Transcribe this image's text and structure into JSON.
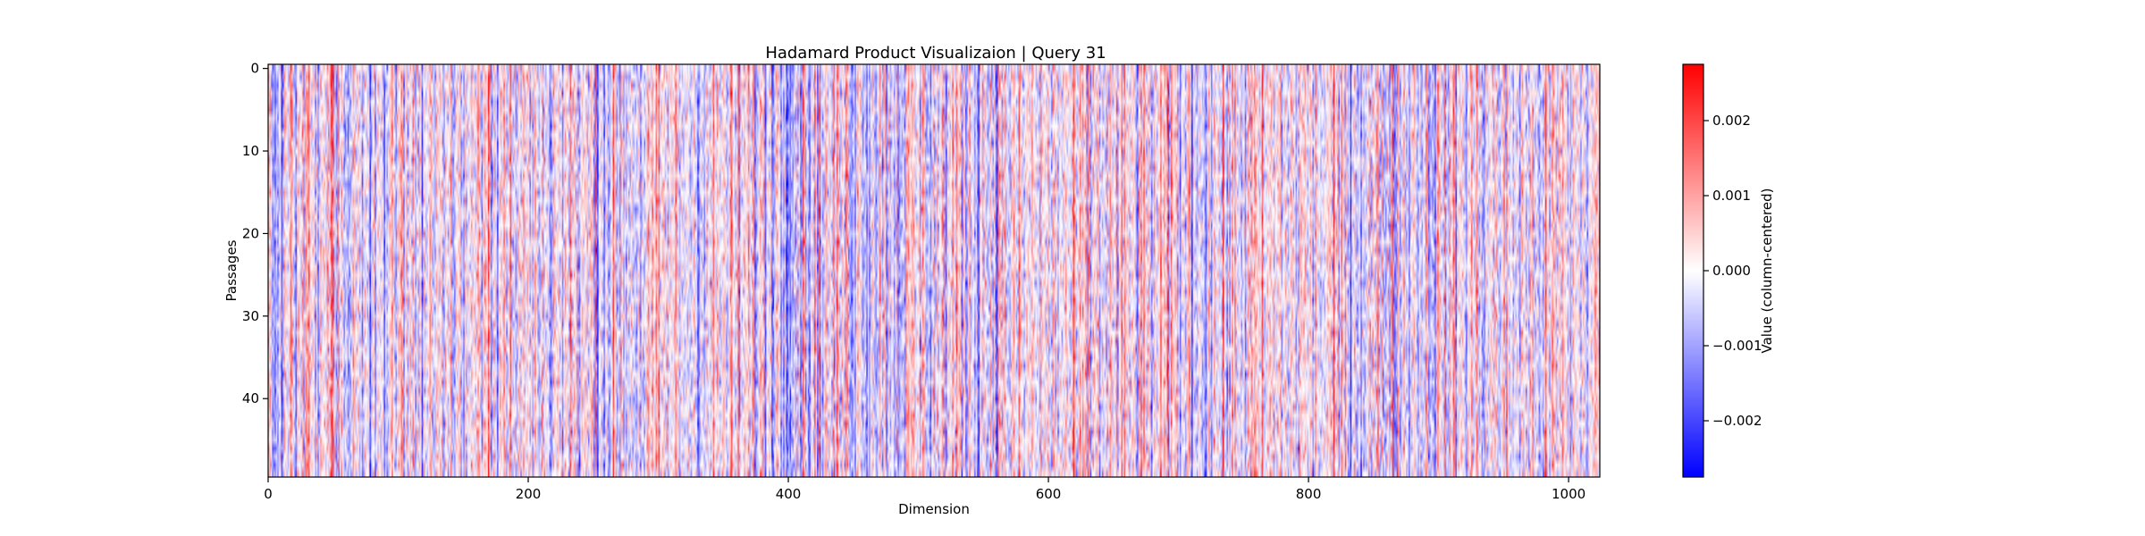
{
  "chart_data": {
    "type": "heatmap",
    "title": "Hadamard Product Visualizaion | Query 31",
    "xlabel": "Dimension",
    "ylabel": "Passages",
    "x_range": [
      0,
      1024
    ],
    "y_range": [
      0,
      50
    ],
    "rows": 50,
    "columns": 1024,
    "x_ticks": [
      "0",
      "200",
      "400",
      "600",
      "800",
      "1000"
    ],
    "y_ticks": [
      "0",
      "10",
      "20",
      "30",
      "40"
    ],
    "colorbar": {
      "label": "Value (column-centered)",
      "range": [
        -0.00275,
        0.00275
      ],
      "ticks": [
        "0.002",
        "0.001",
        "0.000",
        "−0.001",
        "−0.002"
      ],
      "colormap": "bwr",
      "colors": {
        "low": "#0000ff",
        "mid": "#ffffff",
        "high": "#ff0000"
      }
    }
  }
}
